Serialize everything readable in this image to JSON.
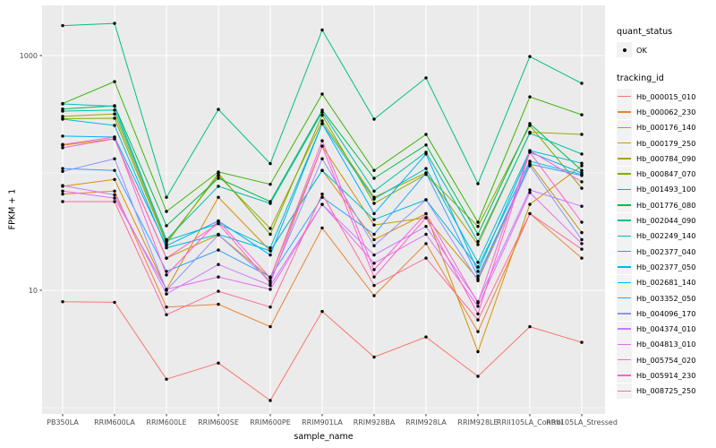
{
  "chart_data": {
    "type": "line",
    "title": "",
    "xlabel": "sample_name",
    "ylabel": "FPKM + 1",
    "y_scale": "log10",
    "y_ticks": [
      10,
      1000
    ],
    "y_minor_ticks": [
      1,
      100
    ],
    "ylim": [
      0.9,
      2700
    ],
    "grid": "on",
    "legend_position": "right",
    "panel_bg": "#EBEBEB",
    "grid_color": "#FFFFFF",
    "point_color": "#000000",
    "categories": [
      "PB350LA",
      "RRIM600LA",
      "RRIM600LE",
      "RRIM600SE",
      "RRIM600PE",
      "RRIM901LA",
      "RRIM928BA",
      "RRIM928LA",
      "RRIM928LE",
      "RRII105LA_Control",
      "RRII105LA_Stressed"
    ],
    "series": [
      {
        "name": "Hb_000015_010",
        "color": "#F8766D",
        "values": [
          8.0,
          7.9,
          1.75,
          2.4,
          1.15,
          6.6,
          2.7,
          4.0,
          1.85,
          4.9,
          3.6
        ]
      },
      {
        "name": "Hb_000062_230",
        "color": "#EA8331",
        "values": [
          66,
          70,
          7.2,
          7.6,
          4.9,
          34,
          9,
          25,
          4.45,
          45,
          18.8
        ]
      },
      {
        "name": "Hb_000176_140",
        "color": "#D89000",
        "values": [
          77,
          88,
          10.2,
          62,
          21.7,
          105,
          27,
          45,
          3.0,
          54,
          115
        ]
      },
      {
        "name": "Hb_000179_250",
        "color": "#C09B00",
        "values": [
          172,
          195,
          18.8,
          29.7,
          12.8,
          169,
          36,
          41.5,
          12.5,
          121,
          31
        ]
      },
      {
        "name": "Hb_000784_090",
        "color": "#A3A500",
        "values": [
          303,
          318,
          26,
          95,
          33.6,
          277,
          62,
          100,
          24.5,
          222,
          213
        ]
      },
      {
        "name": "Hb_000847_070",
        "color": "#7CAE00",
        "values": [
          290,
          292,
          25,
          99,
          30,
          310,
          55,
          97,
          35,
          254,
          74
        ]
      },
      {
        "name": "Hb_001493_100",
        "color": "#39B600",
        "values": [
          390,
          600,
          47,
          102,
          80,
          470,
          105,
          213,
          38,
          445,
          313
        ]
      },
      {
        "name": "Hb_001776_080",
        "color": "#00BB4E",
        "values": [
          350,
          374,
          35.5,
          90,
          57,
          342,
          90,
          173,
          30,
          263,
          105
        ]
      },
      {
        "name": "Hb_002044_090",
        "color": "#00C087",
        "values": [
          1800,
          1880,
          62,
          348,
          120,
          1650,
          287,
          645,
          81,
          980,
          580
        ]
      },
      {
        "name": "Hb_002249_140",
        "color": "#00C1A3",
        "values": [
          336,
          343,
          27,
          77,
          55,
          330,
          70,
          150,
          26,
          218,
          145
        ]
      },
      {
        "name": "Hb_002377_040",
        "color": "#00BFC4",
        "values": [
          387,
          370,
          26.5,
          37,
          23,
          263,
          60,
          109,
          17.3,
          155,
          121
        ]
      },
      {
        "name": "Hb_002377_050",
        "color": "#00BAE0",
        "values": [
          287,
          254,
          23,
          30,
          21.7,
          105,
          40,
          59,
          15.8,
          126,
          97
        ]
      },
      {
        "name": "Hb_002681_140",
        "color": "#00B0F6",
        "values": [
          206,
          202,
          24,
          39,
          20,
          263,
          45,
          145,
          14.5,
          150,
          100
        ]
      },
      {
        "name": "Hb_003352_050",
        "color": "#35A2FF",
        "values": [
          109,
          105,
          14.5,
          22,
          13,
          62,
          30,
          100,
          13.2,
          119,
          95
        ]
      },
      {
        "name": "Hb_004096_170",
        "color": "#9590FF",
        "values": [
          103,
          132,
          10,
          29.7,
          12,
          132,
          24,
          59,
          12.1,
          115,
          27
        ]
      },
      {
        "name": "Hb_004374_010",
        "color": "#C77CFF",
        "values": [
          78,
          65,
          9.3,
          16.6,
          11,
          54,
          20,
          35,
          8.0,
          71.6,
          52
        ]
      },
      {
        "name": "Hb_004813_010",
        "color": "#E76BF3",
        "values": [
          70,
          61,
          10.2,
          13,
          10.2,
          54,
          17,
          30,
          7.3,
          68,
          25
        ]
      },
      {
        "name": "Hb_005754_020",
        "color": "#FA62DB",
        "values": [
          175,
          202,
          13.5,
          39,
          12.8,
          188,
          15,
          45,
          7.8,
          155,
          84
        ]
      },
      {
        "name": "Hb_005914_230",
        "color": "#FF61CC",
        "values": [
          164,
          195,
          18.8,
          37,
          11.5,
          169,
          13,
          41.5,
          6.3,
          150,
          38
        ]
      },
      {
        "name": "Hb_008725_250",
        "color": "#FF6A98",
        "values": [
          57,
          57,
          6.2,
          9.8,
          7.2,
          66,
          11,
          18.8,
          5.6,
          45,
          22.4
        ]
      }
    ],
    "legend": {
      "quant_status": {
        "title": "quant_status",
        "items": [
          {
            "label": "OK",
            "symbol": "black-point"
          }
        ]
      },
      "tracking_id": {
        "title": "tracking_id"
      }
    }
  }
}
